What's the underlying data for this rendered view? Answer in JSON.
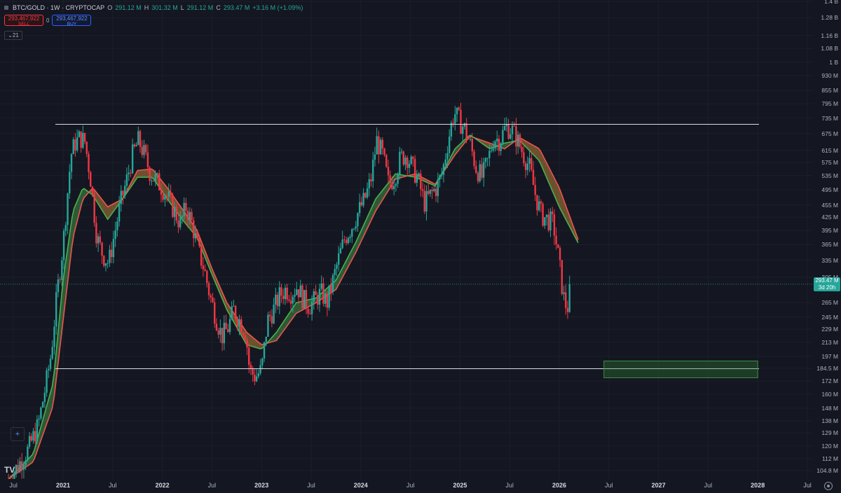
{
  "header": {
    "symbol": "BTC/GOLD · 1W · CRYPTOCAP",
    "open_label": "O",
    "open": "291.12 M",
    "high_label": "H",
    "high": "301.32 M",
    "low_label": "L",
    "low": "291.12 M",
    "close_label": "C",
    "close": "293.47 M",
    "change": "+3.16 M (+1.09%)"
  },
  "order": {
    "sell_price": "293,467,922",
    "sell_label": "SELL",
    "spread": "0",
    "buy_price": "293,467,922",
    "buy_label": "BUY"
  },
  "indicators_count": "21",
  "last_price": {
    "value": "293.47 M",
    "countdown": "3d 20h"
  },
  "icons": {
    "logo": "tradingview-logo-icon",
    "crosshair": "crosshair-tool-icon",
    "settings": "settings-gear-icon"
  },
  "colors": {
    "up": "#26a69a",
    "down": "#f23645",
    "ema_fast": "#4caf50",
    "ema_slow": "#ef5350",
    "zone": "#2e7d32"
  },
  "chart_data": {
    "type": "candlestick",
    "scale": "log",
    "y_ticks": [
      "1.4 B",
      "1.28 B",
      "1.16 B",
      "1.08 B",
      "1 B",
      "930 M",
      "855 M",
      "795 M",
      "735 M",
      "675 M",
      "615 M",
      "575 M",
      "535 M",
      "495 M",
      "455 M",
      "425 M",
      "395 M",
      "365 M",
      "335 M",
      "305 M",
      "265 M",
      "245 M",
      "229 M",
      "213 M",
      "197 M",
      "184.5 M",
      "172 M",
      "160 M",
      "148 M",
      "138 M",
      "129 M",
      "120 M",
      "112 M",
      "104.8 M"
    ],
    "y_tick_values": [
      1400,
      1280,
      1160,
      1080,
      1000,
      930,
      855,
      795,
      735,
      675,
      615,
      575,
      535,
      495,
      455,
      425,
      395,
      365,
      335,
      305,
      265,
      245,
      229,
      213,
      197,
      184.5,
      172,
      160,
      148,
      138,
      129,
      120,
      112,
      104.8
    ],
    "x_ticks": [
      "Jul",
      "2021",
      "Jul",
      "2022",
      "Jul",
      "2023",
      "Jul",
      "2024",
      "Jul",
      "2025",
      "Jul",
      "2026",
      "Jul",
      "2027",
      "Jul",
      "2028",
      "Jul"
    ],
    "x_tick_values": [
      2020.5,
      2021.0,
      2021.5,
      2022.0,
      2022.5,
      2023.0,
      2023.5,
      2024.0,
      2024.5,
      2025.0,
      2025.5,
      2026.0,
      2026.5,
      2027.0,
      2027.5,
      2028.0,
      2028.5
    ],
    "anchor_points": [
      [
        2020.45,
        100
      ],
      [
        2020.55,
        108
      ],
      [
        2020.65,
        118
      ],
      [
        2020.75,
        135
      ],
      [
        2020.82,
        165
      ],
      [
        2020.88,
        200
      ],
      [
        2020.94,
        280
      ],
      [
        2021.0,
        365
      ],
      [
        2021.04,
        470
      ],
      [
        2021.08,
        600
      ],
      [
        2021.12,
        640
      ],
      [
        2021.17,
        660
      ],
      [
        2021.22,
        645
      ],
      [
        2021.28,
        520
      ],
      [
        2021.34,
        380
      ],
      [
        2021.4,
        345
      ],
      [
        2021.46,
        330
      ],
      [
        2021.52,
        390
      ],
      [
        2021.58,
        460
      ],
      [
        2021.64,
        520
      ],
      [
        2021.7,
        600
      ],
      [
        2021.76,
        650
      ],
      [
        2021.82,
        600
      ],
      [
        2021.88,
        540
      ],
      [
        2021.94,
        520
      ],
      [
        2022.0,
        500
      ],
      [
        2022.06,
        470
      ],
      [
        2022.12,
        440
      ],
      [
        2022.18,
        410
      ],
      [
        2022.24,
        450
      ],
      [
        2022.3,
        410
      ],
      [
        2022.36,
        355
      ],
      [
        2022.42,
        320
      ],
      [
        2022.48,
        275
      ],
      [
        2022.55,
        240
      ],
      [
        2022.6,
        220
      ],
      [
        2022.66,
        230
      ],
      [
        2022.72,
        255
      ],
      [
        2022.78,
        240
      ],
      [
        2022.84,
        225
      ],
      [
        2022.88,
        182
      ],
      [
        2022.94,
        176
      ],
      [
        2023.0,
        183
      ],
      [
        2023.06,
        240
      ],
      [
        2023.12,
        255
      ],
      [
        2023.18,
        275
      ],
      [
        2023.24,
        285
      ],
      [
        2023.3,
        280
      ],
      [
        2023.36,
        290
      ],
      [
        2023.42,
        270
      ],
      [
        2023.48,
        260
      ],
      [
        2023.54,
        270
      ],
      [
        2023.6,
        280
      ],
      [
        2023.66,
        265
      ],
      [
        2023.72,
        300
      ],
      [
        2023.78,
        340
      ],
      [
        2023.84,
        380
      ],
      [
        2023.9,
        400
      ],
      [
        2023.96,
        430
      ],
      [
        2024.04,
        470
      ],
      [
        2024.1,
        520
      ],
      [
        2024.16,
        650
      ],
      [
        2024.22,
        600
      ],
      [
        2024.28,
        510
      ],
      [
        2024.34,
        530
      ],
      [
        2024.4,
        590
      ],
      [
        2024.46,
        600
      ],
      [
        2024.52,
        560
      ],
      [
        2024.58,
        520
      ],
      [
        2024.64,
        460
      ],
      [
        2024.7,
        480
      ],
      [
        2024.76,
        500
      ],
      [
        2024.82,
        540
      ],
      [
        2024.88,
        650
      ],
      [
        2024.94,
        760
      ],
      [
        2025.0,
        720
      ],
      [
        2025.05,
        690
      ],
      [
        2025.1,
        640
      ],
      [
        2025.16,
        560
      ],
      [
        2025.22,
        530
      ],
      [
        2025.28,
        580
      ],
      [
        2025.34,
        660
      ],
      [
        2025.4,
        650
      ],
      [
        2025.46,
        700
      ],
      [
        2025.52,
        690
      ],
      [
        2025.58,
        650
      ],
      [
        2025.64,
        600
      ],
      [
        2025.7,
        560
      ],
      [
        2025.76,
        480
      ],
      [
        2025.82,
        430
      ],
      [
        2025.88,
        420
      ],
      [
        2025.94,
        410
      ],
      [
        2026.0,
        330
      ],
      [
        2026.04,
        275
      ],
      [
        2026.08,
        255
      ],
      [
        2026.12,
        293
      ]
    ],
    "ema_fast": [
      [
        2020.45,
        100
      ],
      [
        2020.7,
        115
      ],
      [
        2020.9,
        170
      ],
      [
        2021.0,
        300
      ],
      [
        2021.1,
        440
      ],
      [
        2021.2,
        500
      ],
      [
        2021.3,
        480
      ],
      [
        2021.45,
        420
      ],
      [
        2021.6,
        470
      ],
      [
        2021.75,
        530
      ],
      [
        2021.9,
        530
      ],
      [
        2022.05,
        470
      ],
      [
        2022.2,
        420
      ],
      [
        2022.35,
        380
      ],
      [
        2022.5,
        310
      ],
      [
        2022.65,
        255
      ],
      [
        2022.85,
        210
      ],
      [
        2023.0,
        205
      ],
      [
        2023.15,
        225
      ],
      [
        2023.35,
        265
      ],
      [
        2023.55,
        272
      ],
      [
        2023.75,
        300
      ],
      [
        2023.95,
        370
      ],
      [
        2024.15,
        470
      ],
      [
        2024.35,
        540
      ],
      [
        2024.55,
        530
      ],
      [
        2024.75,
        505
      ],
      [
        2024.95,
        620
      ],
      [
        2025.1,
        670
      ],
      [
        2025.3,
        620
      ],
      [
        2025.45,
        640
      ],
      [
        2025.6,
        650
      ],
      [
        2025.8,
        580
      ],
      [
        2026.0,
        450
      ],
      [
        2026.2,
        365
      ]
    ],
    "ema_slow": [
      [
        2020.45,
        100
      ],
      [
        2020.7,
        110
      ],
      [
        2020.9,
        150
      ],
      [
        2021.0,
        240
      ],
      [
        2021.1,
        380
      ],
      [
        2021.2,
        470
      ],
      [
        2021.3,
        500
      ],
      [
        2021.45,
        450
      ],
      [
        2021.6,
        470
      ],
      [
        2021.75,
        550
      ],
      [
        2021.9,
        555
      ],
      [
        2022.05,
        500
      ],
      [
        2022.2,
        445
      ],
      [
        2022.35,
        395
      ],
      [
        2022.5,
        320
      ],
      [
        2022.65,
        265
      ],
      [
        2022.85,
        225
      ],
      [
        2023.0,
        210
      ],
      [
        2023.15,
        215
      ],
      [
        2023.35,
        250
      ],
      [
        2023.55,
        265
      ],
      [
        2023.75,
        285
      ],
      [
        2023.95,
        350
      ],
      [
        2024.15,
        440
      ],
      [
        2024.35,
        525
      ],
      [
        2024.55,
        540
      ],
      [
        2024.75,
        510
      ],
      [
        2024.95,
        600
      ],
      [
        2025.1,
        665
      ],
      [
        2025.3,
        640
      ],
      [
        2025.45,
        620
      ],
      [
        2025.6,
        660
      ],
      [
        2025.8,
        620
      ],
      [
        2026.0,
        500
      ],
      [
        2026.2,
        370
      ]
    ],
    "resistance": 710,
    "support": 184,
    "target_zone": {
      "x": [
        2026.45,
        2028.0
      ],
      "y": [
        175,
        192
      ]
    },
    "last_price_value": 293.47
  }
}
